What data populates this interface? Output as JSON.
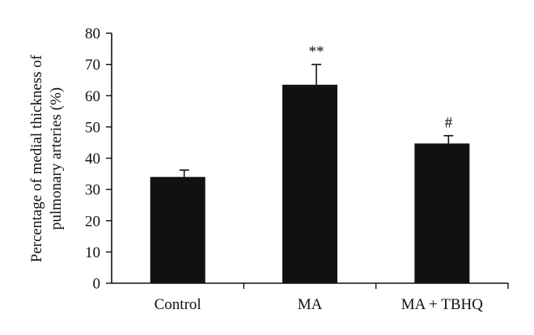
{
  "chart_data": {
    "type": "bar",
    "title": "",
    "xlabel": "",
    "ylabel_lines": [
      "Percentage of medial thickness of",
      "pulmonary arteries (%)"
    ],
    "ylim": [
      0,
      80
    ],
    "yticks": [
      0,
      10,
      20,
      30,
      40,
      50,
      60,
      70,
      80
    ],
    "categories": [
      "Control",
      "MA",
      "MA + TBHQ"
    ],
    "values": [
      34,
      63.5,
      44.7
    ],
    "error_upper": [
      2.2,
      6.5,
      2.5
    ],
    "annotations": [
      "",
      "**",
      "#"
    ],
    "bar_color": "#111111",
    "grid": false
  }
}
